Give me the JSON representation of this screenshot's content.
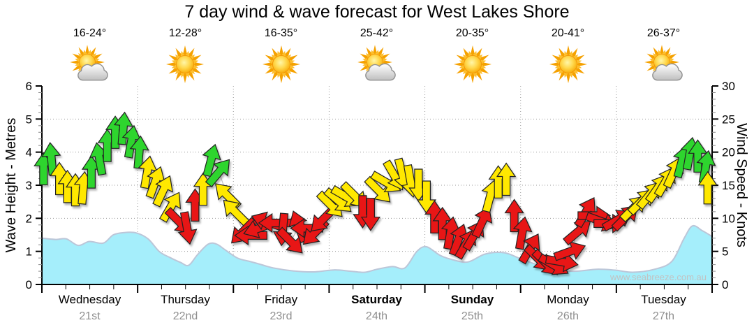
{
  "title": "7 day wind & wave forecast for West Lakes Shore",
  "watermark": "www.seabreeze.com.au",
  "days": [
    {
      "name": "Wednesday",
      "date": "21st",
      "temp": "16-24°",
      "icon": "sun-cloud-icon",
      "bold": false
    },
    {
      "name": "Thursday",
      "date": "22nd",
      "temp": "12-28°",
      "icon": "sun-icon",
      "bold": false
    },
    {
      "name": "Friday",
      "date": "23rd",
      "temp": "16-35°",
      "icon": "sun-icon",
      "bold": false
    },
    {
      "name": "Saturday",
      "date": "24th",
      "temp": "25-42°",
      "icon": "sun-cloud-icon",
      "bold": true
    },
    {
      "name": "Sunday",
      "date": "25th",
      "temp": "20-35°",
      "icon": "sun-icon",
      "bold": true
    },
    {
      "name": "Monday",
      "date": "26th",
      "temp": "20-41°",
      "icon": "sun-icon",
      "bold": false
    },
    {
      "name": "Tuesday",
      "date": "27th",
      "temp": "26-37°",
      "icon": "sun-cloud-icon",
      "bold": false
    }
  ],
  "chart_data": {
    "type": "area+wind-arrows",
    "title": "7 day wind & wave forecast for West Lakes Shore",
    "left_axis": {
      "label": "Wave Height - Metres",
      "min": 0,
      "max": 6,
      "major": 1,
      "minor": 0.2
    },
    "right_axis": {
      "label": "Wind Speed - Knots",
      "min": 0,
      "max": 30,
      "major": 5,
      "minor": 1
    },
    "x_axis": {
      "hours_total": 168,
      "days": 7,
      "minor_tick_hours": 6,
      "grid_at_day_boundaries": true
    },
    "grid": true,
    "colors": {
      "green": "#2fd52f",
      "yellow": "#ffe800",
      "red": "#e81414",
      "arrow_outline": "#222222",
      "wave_fill": "#a5eefb",
      "wave_edge": "#bcc6d8",
      "grid": "#9a9a9a",
      "axis": "#000000",
      "minor_tick": "#888888",
      "watermark": "#c2c2c2",
      "date_text": "#8f8f8f"
    },
    "wave_series": {
      "name": "Wave Height",
      "unit": "m",
      "points": [
        [
          0,
          1.4
        ],
        [
          3.5,
          1.36
        ],
        [
          6.1,
          1.38
        ],
        [
          9.1,
          1.18
        ],
        [
          11.9,
          1.3
        ],
        [
          15.4,
          1.25
        ],
        [
          17.9,
          1.5
        ],
        [
          20.7,
          1.57
        ],
        [
          23.6,
          1.56
        ],
        [
          26.6,
          1.38
        ],
        [
          29.4,
          1.0
        ],
        [
          32,
          0.82
        ],
        [
          34.7,
          0.67
        ],
        [
          36.8,
          0.58
        ],
        [
          39,
          0.9
        ],
        [
          41.7,
          1.22
        ],
        [
          43.8,
          1.22
        ],
        [
          45.9,
          1.05
        ],
        [
          49,
          0.8
        ],
        [
          52,
          0.7
        ],
        [
          55,
          0.6
        ],
        [
          58,
          0.5
        ],
        [
          63,
          0.41
        ],
        [
          68.3,
          0.38
        ],
        [
          73.2,
          0.44
        ],
        [
          77.5,
          0.4
        ],
        [
          81,
          0.37
        ],
        [
          84,
          0.46
        ],
        [
          87.9,
          0.54
        ],
        [
          91,
          0.5
        ],
        [
          94,
          1.0
        ],
        [
          96.4,
          1.14
        ],
        [
          99.8,
          0.88
        ],
        [
          102.9,
          0.75
        ],
        [
          106.8,
          0.68
        ],
        [
          111.1,
          0.92
        ],
        [
          115.9,
          0.96
        ],
        [
          119.9,
          0.78
        ],
        [
          123.6,
          0.62
        ],
        [
          127.8,
          0.46
        ],
        [
          133.4,
          0.4
        ],
        [
          139.1,
          0.46
        ],
        [
          143.9,
          0.43
        ],
        [
          148.1,
          0.37
        ],
        [
          153.6,
          0.46
        ],
        [
          157.9,
          0.7
        ],
        [
          161,
          1.4
        ],
        [
          163.1,
          1.77
        ],
        [
          165.6,
          1.62
        ],
        [
          168,
          1.45
        ]
      ]
    },
    "wind_series": {
      "name": "Wind Speed",
      "unit": "knots",
      "dir_convention": "degrees clockwise from screen-up; arrow points this way",
      "points": [
        [
          0.4,
          17.5,
          0,
          "g"
        ],
        [
          2.4,
          19,
          355,
          "g"
        ],
        [
          4.4,
          16,
          0,
          "y"
        ],
        [
          6.4,
          14.8,
          0,
          "y"
        ],
        [
          8.4,
          14.3,
          0,
          "y"
        ],
        [
          10.4,
          14.6,
          5,
          "y"
        ],
        [
          12.4,
          17,
          0,
          "g"
        ],
        [
          14.4,
          19,
          350,
          "g"
        ],
        [
          16.4,
          21,
          0,
          "g"
        ],
        [
          18.4,
          23,
          0,
          "g"
        ],
        [
          20.4,
          23.6,
          5,
          "g"
        ],
        [
          22.4,
          21.6,
          10,
          "g"
        ],
        [
          24.4,
          20,
          5,
          "g"
        ],
        [
          26.4,
          17,
          10,
          "y"
        ],
        [
          28.4,
          15.5,
          20,
          "y"
        ],
        [
          30.4,
          14.2,
          25,
          "y"
        ],
        [
          32.4,
          11.8,
          30,
          "y"
        ],
        [
          34.4,
          9.5,
          135,
          "r"
        ],
        [
          36.4,
          8.5,
          170,
          "r"
        ],
        [
          38.4,
          12,
          0,
          "r"
        ],
        [
          40.4,
          14.4,
          0,
          "y"
        ],
        [
          42.4,
          18.8,
          15,
          "g"
        ],
        [
          44.4,
          17,
          40,
          "g"
        ],
        [
          46.4,
          13.5,
          315,
          "y"
        ],
        [
          48.4,
          11,
          315,
          "y"
        ],
        [
          50.4,
          8,
          225,
          "r"
        ],
        [
          52.4,
          7.4,
          270,
          "r"
        ],
        [
          54.4,
          8.5,
          250,
          "r"
        ],
        [
          56.4,
          9.5,
          290,
          "r"
        ],
        [
          58.4,
          9.3,
          270,
          "r"
        ],
        [
          60.4,
          8.3,
          185,
          "r"
        ],
        [
          62.4,
          6.5,
          135,
          "r"
        ],
        [
          64.4,
          8.8,
          340,
          "r"
        ],
        [
          66.4,
          8.5,
          270,
          "r"
        ],
        [
          68.4,
          7.8,
          225,
          "r"
        ],
        [
          70.4,
          9.8,
          225,
          "r"
        ],
        [
          72.4,
          12,
          135,
          "y"
        ],
        [
          74.4,
          12.6,
          130,
          "y"
        ],
        [
          76.4,
          13.2,
          120,
          "y"
        ],
        [
          78.4,
          13.4,
          135,
          "y"
        ],
        [
          80.4,
          11,
          180,
          "r"
        ],
        [
          82.4,
          10.6,
          180,
          "r"
        ],
        [
          84.4,
          14.2,
          135,
          "y"
        ],
        [
          86.4,
          15.4,
          120,
          "y"
        ],
        [
          88.4,
          16.4,
          150,
          "y"
        ],
        [
          90.4,
          16.6,
          165,
          "y"
        ],
        [
          92.4,
          15.6,
          170,
          "y"
        ],
        [
          94.4,
          15,
          180,
          "y"
        ],
        [
          96.4,
          13.2,
          180,
          "y"
        ],
        [
          98.4,
          10.2,
          0,
          "r"
        ],
        [
          100.4,
          9.2,
          0,
          "r"
        ],
        [
          102.4,
          7.8,
          10,
          "r"
        ],
        [
          104.4,
          6.8,
          20,
          "r"
        ],
        [
          106.4,
          6.2,
          30,
          "r"
        ],
        [
          108.4,
          7.5,
          30,
          "r"
        ],
        [
          110.4,
          9.5,
          25,
          "r"
        ],
        [
          112.4,
          13.4,
          15,
          "y"
        ],
        [
          114.4,
          15.5,
          0,
          "y"
        ],
        [
          116.4,
          15.9,
          0,
          "y"
        ],
        [
          118.4,
          10.4,
          0,
          "r"
        ],
        [
          120.4,
          7.8,
          10,
          "r"
        ],
        [
          122.4,
          5.5,
          30,
          "r"
        ],
        [
          124.4,
          3.9,
          135,
          "r"
        ],
        [
          126.4,
          3.2,
          135,
          "r"
        ],
        [
          128.4,
          2.9,
          120,
          "r"
        ],
        [
          130.4,
          3.4,
          100,
          "r"
        ],
        [
          132.4,
          5,
          70,
          "r"
        ],
        [
          134.4,
          8,
          50,
          "r"
        ],
        [
          136.4,
          11,
          30,
          "r"
        ],
        [
          138.4,
          10.4,
          90,
          "r"
        ],
        [
          140.4,
          9.5,
          110,
          "r"
        ],
        [
          142.4,
          9.2,
          90,
          "r"
        ],
        [
          144.4,
          9.8,
          60,
          "r"
        ],
        [
          146.4,
          10.2,
          45,
          "r"
        ],
        [
          148.4,
          11.6,
          45,
          "y"
        ],
        [
          150.4,
          12.6,
          45,
          "y"
        ],
        [
          152.4,
          13.6,
          40,
          "y"
        ],
        [
          154.4,
          14.6,
          35,
          "y"
        ],
        [
          156.4,
          15.6,
          30,
          "y"
        ],
        [
          158.4,
          17,
          25,
          "y"
        ],
        [
          160.4,
          18.6,
          15,
          "g"
        ],
        [
          162.4,
          19.8,
          10,
          "g"
        ],
        [
          164.4,
          19.4,
          0,
          "g"
        ],
        [
          166.4,
          17.8,
          10,
          "g"
        ],
        [
          166.9,
          14.6,
          0,
          "y"
        ]
      ]
    }
  }
}
